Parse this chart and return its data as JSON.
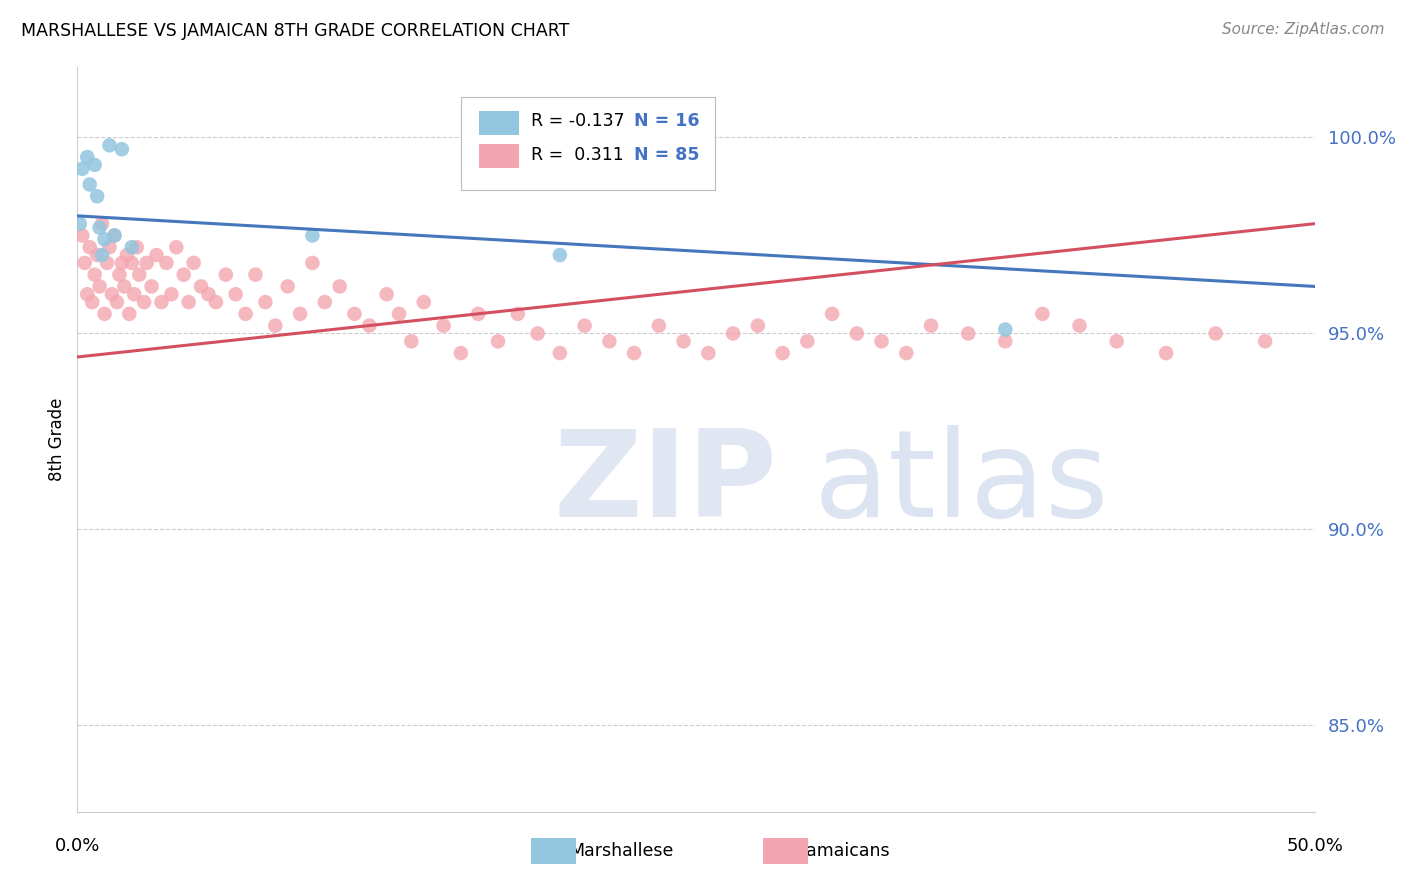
{
  "title": "MARSHALLESE VS JAMAICAN 8TH GRADE CORRELATION CHART",
  "source": "Source: ZipAtlas.com",
  "ylabel": "8th Grade",
  "ytick_labels": [
    "85.0%",
    "90.0%",
    "95.0%",
    "100.0%"
  ],
  "ytick_values": [
    0.85,
    0.9,
    0.95,
    1.0
  ],
  "xlim": [
    0.0,
    0.5
  ],
  "ylim": [
    0.828,
    1.018
  ],
  "legend_blue_r": "-0.137",
  "legend_blue_n": "16",
  "legend_pink_r": "0.311",
  "legend_pink_n": "85",
  "blue_color": "#92c5de",
  "pink_color": "#f4a6b0",
  "blue_line_color": "#4477bb",
  "pink_line_color": "#d45060",
  "blue_trend_x": [
    0.0,
    0.5
  ],
  "blue_trend_y": [
    0.98,
    0.962
  ],
  "pink_trend_x": [
    0.0,
    0.5
  ],
  "pink_trend_y": [
    0.944,
    0.978
  ],
  "marshallese_x": [
    0.001,
    0.002,
    0.004,
    0.005,
    0.007,
    0.008,
    0.009,
    0.01,
    0.011,
    0.013,
    0.015,
    0.018,
    0.022,
    0.095,
    0.195,
    0.375
  ],
  "marshallese_y": [
    0.978,
    0.992,
    0.995,
    0.988,
    0.993,
    0.985,
    0.977,
    0.97,
    0.974,
    0.998,
    0.975,
    0.997,
    0.972,
    0.975,
    0.97,
    0.951
  ],
  "jamaican_x": [
    0.002,
    0.003,
    0.004,
    0.005,
    0.006,
    0.007,
    0.008,
    0.009,
    0.01,
    0.011,
    0.012,
    0.013,
    0.014,
    0.015,
    0.016,
    0.017,
    0.018,
    0.019,
    0.02,
    0.021,
    0.022,
    0.023,
    0.024,
    0.025,
    0.027,
    0.028,
    0.03,
    0.032,
    0.034,
    0.036,
    0.038,
    0.04,
    0.043,
    0.045,
    0.047,
    0.05,
    0.053,
    0.056,
    0.06,
    0.064,
    0.068,
    0.072,
    0.076,
    0.08,
    0.085,
    0.09,
    0.095,
    0.1,
    0.106,
    0.112,
    0.118,
    0.125,
    0.13,
    0.135,
    0.14,
    0.148,
    0.155,
    0.162,
    0.17,
    0.178,
    0.186,
    0.195,
    0.205,
    0.215,
    0.225,
    0.235,
    0.245,
    0.255,
    0.265,
    0.275,
    0.285,
    0.295,
    0.305,
    0.315,
    0.325,
    0.335,
    0.345,
    0.36,
    0.375,
    0.39,
    0.405,
    0.42,
    0.44,
    0.46,
    0.48
  ],
  "jamaican_y": [
    0.975,
    0.968,
    0.96,
    0.972,
    0.958,
    0.965,
    0.97,
    0.962,
    0.978,
    0.955,
    0.968,
    0.972,
    0.96,
    0.975,
    0.958,
    0.965,
    0.968,
    0.962,
    0.97,
    0.955,
    0.968,
    0.96,
    0.972,
    0.965,
    0.958,
    0.968,
    0.962,
    0.97,
    0.958,
    0.968,
    0.96,
    0.972,
    0.965,
    0.958,
    0.968,
    0.962,
    0.96,
    0.958,
    0.965,
    0.96,
    0.955,
    0.965,
    0.958,
    0.952,
    0.962,
    0.955,
    0.968,
    0.958,
    0.962,
    0.955,
    0.952,
    0.96,
    0.955,
    0.948,
    0.958,
    0.952,
    0.945,
    0.955,
    0.948,
    0.955,
    0.95,
    0.945,
    0.952,
    0.948,
    0.945,
    0.952,
    0.948,
    0.945,
    0.95,
    0.952,
    0.945,
    0.948,
    0.955,
    0.95,
    0.948,
    0.945,
    0.952,
    0.95,
    0.948,
    0.955,
    0.952,
    0.948,
    0.945,
    0.95,
    0.948
  ]
}
